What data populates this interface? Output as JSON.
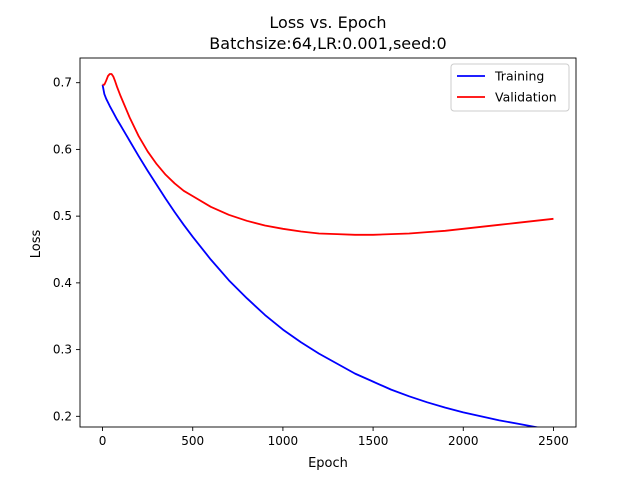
{
  "chart_data": {
    "type": "line",
    "title": "Loss vs. Epoch",
    "subtitle": "Batchsize:64,LR:0.001,seed:0",
    "xlabel": "Epoch",
    "ylabel": "Loss",
    "xlim": [
      -125,
      2625
    ],
    "ylim": [
      0.184,
      0.737
    ],
    "xticks": [
      0,
      500,
      1000,
      1500,
      2000,
      2500
    ],
    "xtick_labels": [
      "0",
      "500",
      "1000",
      "1500",
      "2000",
      "2500"
    ],
    "yticks": [
      0.2,
      0.3,
      0.4,
      0.5,
      0.6,
      0.7
    ],
    "ytick_labels": [
      "0.2",
      "0.3",
      "0.4",
      "0.5",
      "0.6",
      "0.7"
    ],
    "grid": false,
    "legend_position": "top-right",
    "series": [
      {
        "name": "Training",
        "color": "#0000ff",
        "x": [
          0,
          10,
          20,
          40,
          60,
          80,
          100,
          150,
          200,
          250,
          300,
          350,
          400,
          450,
          500,
          600,
          700,
          800,
          900,
          1000,
          1100,
          1200,
          1300,
          1400,
          1500,
          1600,
          1700,
          1800,
          1900,
          2000,
          2100,
          2200,
          2300,
          2400,
          2500
        ],
        "y": [
          0.697,
          0.683,
          0.676,
          0.665,
          0.655,
          0.645,
          0.636,
          0.613,
          0.59,
          0.568,
          0.547,
          0.526,
          0.506,
          0.487,
          0.469,
          0.435,
          0.404,
          0.377,
          0.352,
          0.33,
          0.311,
          0.294,
          0.279,
          0.264,
          0.252,
          0.24,
          0.23,
          0.221,
          0.213,
          0.206,
          0.2,
          0.194,
          0.189,
          0.184,
          0.179
        ]
      },
      {
        "name": "Validation",
        "color": "#ff0000",
        "x": [
          0,
          10,
          20,
          30,
          40,
          50,
          60,
          70,
          80,
          100,
          150,
          200,
          250,
          300,
          350,
          400,
          450,
          500,
          600,
          700,
          800,
          900,
          1000,
          1100,
          1200,
          1300,
          1400,
          1500,
          1600,
          1700,
          1800,
          1900,
          2000,
          2100,
          2200,
          2300,
          2400,
          2500
        ],
        "y": [
          0.697,
          0.697,
          0.703,
          0.71,
          0.713,
          0.713,
          0.709,
          0.702,
          0.694,
          0.68,
          0.648,
          0.62,
          0.597,
          0.578,
          0.562,
          0.549,
          0.538,
          0.53,
          0.514,
          0.502,
          0.493,
          0.486,
          0.481,
          0.477,
          0.474,
          0.473,
          0.472,
          0.472,
          0.473,
          0.474,
          0.476,
          0.478,
          0.481,
          0.484,
          0.487,
          0.49,
          0.493,
          0.496
        ]
      }
    ]
  }
}
